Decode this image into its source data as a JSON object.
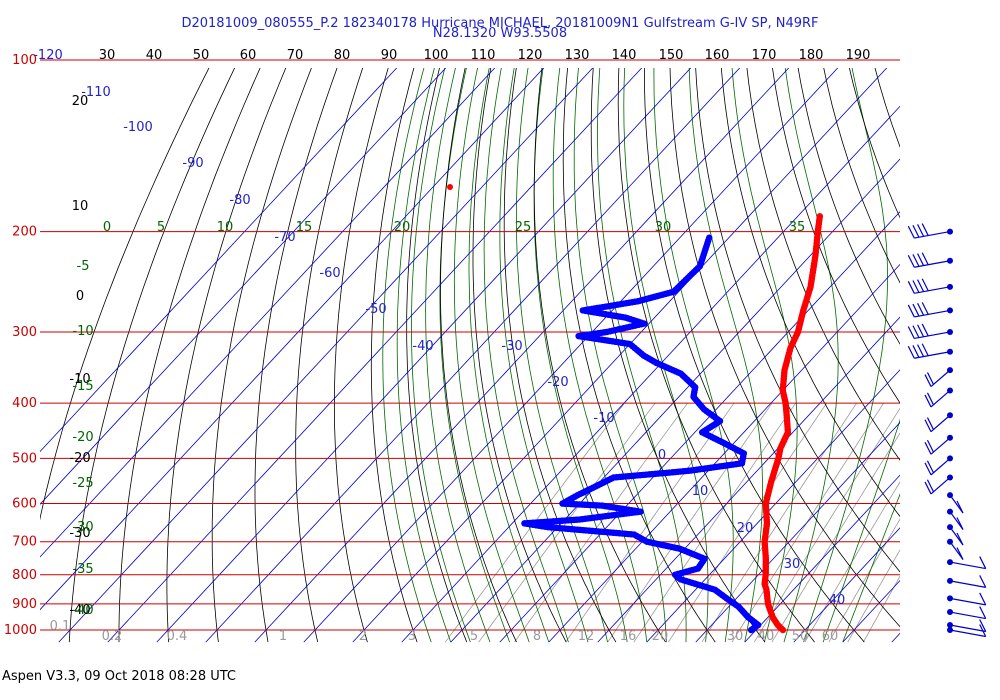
{
  "title": {
    "line1": "D20181009_080555_P.2 182340178 Hurricane MICHAEL, 20181009N1 Gulfstream G-IV SP, N49RF",
    "line2": "N28.1320 W93.5508"
  },
  "footer": "Aspen V3.3, 09 Oct 2018  08:28 UTC",
  "colors": {
    "temperature": "#ff0000",
    "dewpoint": "#0000ff",
    "isobar": "#cc0000",
    "isotherm": "#0000cc",
    "dry_adiabat": "#000000",
    "moist_adiabat": "#006600",
    "mixing_ratio": "#999999",
    "wind_barb": "#0000cc"
  },
  "chart_data": {
    "type": "skew-t",
    "pressure_axis_labels": [
      "100",
      "200",
      "300",
      "400",
      "500",
      "600",
      "700",
      "800",
      "900",
      "1000"
    ],
    "top_axis_labels": [
      "-120",
      "30",
      "40",
      "50",
      "60",
      "70",
      "80",
      "90",
      "100",
      "110",
      "120",
      "130",
      "140",
      "150",
      "160",
      "170",
      "180",
      "190"
    ],
    "isotherm_labels": [
      "-110",
      "-100",
      "-90",
      "-80",
      "-70",
      "-60",
      "-50",
      "-40",
      "-30",
      "-20",
      "-10",
      "0",
      "10",
      "20",
      "30",
      "40"
    ],
    "dry_adiabat_labels": [
      "20",
      "10",
      "0",
      "-10",
      "-20",
      "-30",
      "-40"
    ],
    "moist_adiabat_labels_top": [
      "0",
      "5",
      "10",
      "15",
      "20",
      "25",
      "30",
      "35"
    ],
    "moist_adiabat_labels_left": [
      "-5",
      "-10",
      "-15",
      "-20",
      "-25",
      "-30",
      "-35",
      "-40"
    ],
    "mixing_ratio_labels": [
      "0.1",
      "0.2",
      "0.4",
      "1",
      "2",
      "3",
      "5",
      "8",
      "12",
      "16",
      "20",
      "30",
      "40",
      "50",
      "60"
    ],
    "temperature_profile": {
      "units": "hPa / degC",
      "points": [
        [
          188,
          -45.5
        ],
        [
          200,
          -43.0
        ],
        [
          220,
          -39.0
        ],
        [
          250,
          -34.0
        ],
        [
          275,
          -31.0
        ],
        [
          300,
          -28.0
        ],
        [
          320,
          -26.5
        ],
        [
          350,
          -23.5
        ],
        [
          380,
          -20.0
        ],
        [
          400,
          -17.0
        ],
        [
          420,
          -14.5
        ],
        [
          450,
          -11.0
        ],
        [
          480,
          -9.5
        ],
        [
          500,
          -8.0
        ],
        [
          550,
          -5.0
        ],
        [
          600,
          -2.0
        ],
        [
          650,
          2.0
        ],
        [
          700,
          5.0
        ],
        [
          750,
          8.5
        ],
        [
          800,
          11.5
        ],
        [
          830,
          13.0
        ],
        [
          850,
          14.5
        ],
        [
          900,
          17.5
        ],
        [
          950,
          21.0
        ],
        [
          980,
          23.5
        ],
        [
          1000,
          25.5
        ]
      ]
    },
    "dewpoint_profile": {
      "units": "hPa / degC",
      "points": [
        [
          205,
          -64.0
        ],
        [
          230,
          -60.5
        ],
        [
          255,
          -61.0
        ],
        [
          265,
          -66.5
        ],
        [
          275,
          -76.0
        ],
        [
          283,
          -66.0
        ],
        [
          290,
          -61.0
        ],
        [
          300,
          -67.0
        ],
        [
          305,
          -72.0
        ],
        [
          315,
          -60.0
        ],
        [
          330,
          -55.0
        ],
        [
          340,
          -51.0
        ],
        [
          355,
          -44.0
        ],
        [
          375,
          -38.5
        ],
        [
          390,
          -37.0
        ],
        [
          410,
          -32.5
        ],
        [
          430,
          -27.0
        ],
        [
          450,
          -28.5
        ],
        [
          470,
          -22.0
        ],
        [
          490,
          -16.0
        ],
        [
          510,
          -14.5
        ],
        [
          525,
          -23.5
        ],
        [
          530,
          -28.0
        ],
        [
          540,
          -38.0
        ],
        [
          560,
          -40.0
        ],
        [
          580,
          -42.0
        ],
        [
          600,
          -43.5
        ],
        [
          605,
          -35.0
        ],
        [
          620,
          -26.0
        ],
        [
          640,
          -37.0
        ],
        [
          650,
          -47.5
        ],
        [
          660,
          -42.0
        ],
        [
          680,
          -23.0
        ],
        [
          700,
          -19.0
        ],
        [
          720,
          -11.0
        ],
        [
          750,
          -4.0
        ],
        [
          780,
          -3.5
        ],
        [
          800,
          -7.0
        ],
        [
          815,
          -5.0
        ],
        [
          850,
          4.0
        ],
        [
          880,
          8.0
        ],
        [
          910,
          12.0
        ],
        [
          950,
          16.0
        ],
        [
          980,
          19.5
        ],
        [
          1000,
          19.0
        ]
      ]
    },
    "wind_barbs": [
      {
        "pressure": 200
      },
      {
        "pressure": 225
      },
      {
        "pressure": 250
      },
      {
        "pressure": 275
      },
      {
        "pressure": 300
      },
      {
        "pressure": 325
      },
      {
        "pressure": 350
      },
      {
        "pressure": 380
      },
      {
        "pressure": 420
      },
      {
        "pressure": 460
      },
      {
        "pressure": 500
      },
      {
        "pressure": 540
      },
      {
        "pressure": 580
      },
      {
        "pressure": 620
      },
      {
        "pressure": 660
      },
      {
        "pressure": 700
      },
      {
        "pressure": 760
      },
      {
        "pressure": 820
      },
      {
        "pressure": 880
      },
      {
        "pressure": 930
      },
      {
        "pressure": 980
      },
      {
        "pressure": 1000
      }
    ]
  }
}
